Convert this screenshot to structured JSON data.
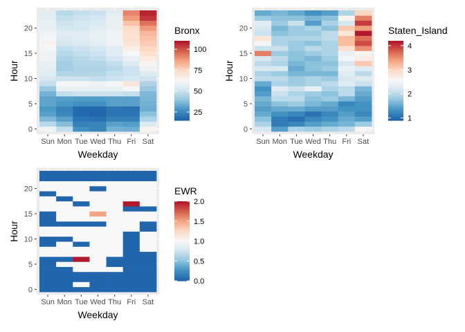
{
  "palette": [
    "#2166AC",
    "#4393C3",
    "#92C5DE",
    "#D1E5F0",
    "#F7F7F7",
    "#FDDBC7",
    "#F4A582",
    "#D6604D",
    "#B2182B"
  ],
  "panel_background": "#EBEBEB",
  "gridline_color": "#FFFFFF",
  "chart_data": [
    {
      "type": "heatmap",
      "xlabel": "Weekday",
      "ylabel": "Hour",
      "x_categories": [
        "Sun",
        "Mon",
        "Tue",
        "Wed",
        "Thu",
        "Fri",
        "Sat"
      ],
      "y_ticks": [
        0,
        5,
        10,
        15,
        20
      ],
      "y_range": [
        0,
        23
      ],
      "legend": {
        "title": "Bronx",
        "position": "right",
        "ticks": [
          25,
          50,
          75,
          100
        ],
        "range": [
          15,
          110
        ]
      },
      "values": [
        [
          60,
          48,
          26,
          23,
          34,
          33,
          64
        ],
        [
          46,
          37,
          22,
          23,
          30,
          29,
          54
        ],
        [
          36,
          30,
          19,
          18,
          22,
          22,
          44
        ],
        [
          30,
          24,
          16,
          15,
          19,
          19,
          38
        ],
        [
          28,
          23,
          16,
          16,
          19,
          18,
          33
        ],
        [
          31,
          28,
          26,
          26,
          30,
          30,
          34
        ],
        [
          31,
          30,
          29,
          29,
          30,
          30,
          35
        ],
        [
          34,
          48,
          50,
          50,
          50,
          48,
          36
        ],
        [
          40,
          58,
          58,
          58,
          58,
          62,
          40
        ],
        [
          48,
          62,
          62,
          60,
          62,
          70,
          44
        ],
        [
          52,
          50,
          50,
          48,
          50,
          52,
          50
        ],
        [
          55,
          45,
          45,
          45,
          48,
          50,
          55
        ],
        [
          57,
          42,
          44,
          44,
          46,
          50,
          60
        ],
        [
          58,
          42,
          45,
          45,
          48,
          55,
          64
        ],
        [
          60,
          44,
          46,
          48,
          52,
          58,
          68
        ],
        [
          60,
          46,
          48,
          50,
          55,
          62,
          72
        ],
        [
          62,
          48,
          50,
          52,
          56,
          66,
          75
        ],
        [
          64,
          52,
          54,
          56,
          60,
          70,
          78
        ],
        [
          62,
          54,
          55,
          58,
          60,
          72,
          80
        ],
        [
          60,
          55,
          56,
          58,
          60,
          72,
          82
        ],
        [
          58,
          52,
          52,
          56,
          58,
          74,
          88
        ],
        [
          58,
          50,
          52,
          54,
          58,
          80,
          95
        ],
        [
          56,
          48,
          50,
          52,
          58,
          88,
          105
        ],
        [
          56,
          46,
          48,
          50,
          56,
          92,
          108
        ]
      ]
    },
    {
      "type": "heatmap",
      "xlabel": "Weekday",
      "ylabel": "Hour",
      "x_categories": [
        "Sun",
        "Mon",
        "Tue",
        "Wed",
        "Thu",
        "Fri",
        "Sat"
      ],
      "y_ticks": [
        0,
        5,
        10,
        15,
        20
      ],
      "y_range": [
        0,
        23
      ],
      "legend": {
        "title": "Staten_Island",
        "position": "right",
        "ticks": [
          1,
          2,
          3,
          4
        ],
        "range": [
          0.9,
          4.2
        ]
      },
      "values": [
        [
          2.2,
          1.4,
          1.9,
          1.8,
          1.9,
          2.0,
          2.6
        ],
        [
          1.9,
          1.1,
          1.2,
          1.4,
          1.5,
          1.6,
          1.8
        ],
        [
          1.7,
          1.1,
          1.0,
          1.2,
          1.3,
          1.5,
          1.4
        ],
        [
          1.5,
          1.3,
          1.2,
          1.0,
          1.2,
          1.4,
          1.2
        ],
        [
          1.4,
          1.5,
          1.5,
          1.4,
          1.4,
          1.3,
          1.3
        ],
        [
          1.5,
          1.7,
          1.8,
          1.6,
          1.5,
          1.2,
          1.3
        ],
        [
          1.6,
          2.0,
          2.0,
          1.7,
          1.8,
          1.6,
          1.4
        ],
        [
          1.4,
          2.1,
          1.9,
          1.8,
          1.7,
          2.0,
          1.5
        ],
        [
          1.3,
          2.3,
          2.1,
          2.4,
          1.9,
          2.0,
          1.6
        ],
        [
          1.5,
          1.9,
          1.8,
          1.9,
          2.0,
          2.3,
          2.1
        ],
        [
          2.0,
          2.0,
          1.8,
          1.9,
          1.8,
          2.2,
          2.3
        ],
        [
          1.9,
          1.8,
          1.6,
          1.6,
          1.6,
          2.3,
          2.0
        ],
        [
          2.2,
          2.2,
          1.5,
          1.7,
          1.8,
          2.4,
          2.3
        ],
        [
          2.0,
          1.9,
          1.6,
          1.7,
          1.7,
          2.2,
          3.1
        ],
        [
          2.2,
          2.0,
          1.7,
          1.6,
          1.8,
          2.5,
          2.7
        ],
        [
          3.6,
          1.8,
          1.7,
          1.8,
          1.9,
          2.4,
          2.6
        ],
        [
          2.1,
          2.1,
          1.8,
          2.0,
          1.9,
          2.9,
          3.5
        ],
        [
          2.5,
          1.9,
          1.8,
          1.7,
          1.9,
          3.2,
          3.9
        ],
        [
          2.8,
          1.9,
          1.9,
          1.9,
          2.0,
          3.2,
          3.7
        ],
        [
          2.1,
          1.7,
          1.8,
          1.8,
          2.0,
          2.8,
          4.2
        ],
        [
          2.2,
          1.6,
          1.8,
          1.9,
          1.7,
          3.1,
          3.4
        ],
        [
          2.3,
          1.8,
          2.1,
          1.4,
          1.9,
          2.2,
          4.0
        ],
        [
          1.8,
          1.7,
          1.7,
          1.6,
          1.7,
          2.6,
          3.6
        ],
        [
          1.5,
          1.6,
          1.5,
          1.3,
          1.4,
          1.9,
          3.0
        ]
      ]
    },
    {
      "type": "heatmap",
      "xlabel": "Weekday",
      "ylabel": "Hour",
      "x_categories": [
        "Sun",
        "Mon",
        "Tue",
        "Wed",
        "Thu",
        "Fri",
        "Sat"
      ],
      "y_ticks": [
        0,
        5,
        10,
        15,
        20
      ],
      "y_range": [
        0,
        23
      ],
      "legend": {
        "title": "EWR",
        "position": "right",
        "ticks": [
          "0.0",
          "0.5",
          "1.0",
          "1.5",
          "2.0"
        ],
        "range": [
          0,
          2
        ]
      },
      "values": [
        [
          0,
          0,
          0,
          0,
          0,
          0,
          0
        ],
        [
          0,
          0,
          1,
          0,
          0,
          0,
          0
        ],
        [
          0,
          0,
          0,
          0,
          0,
          0,
          0
        ],
        [
          0,
          0,
          0,
          0,
          0,
          0,
          0
        ],
        [
          0,
          0,
          1,
          1,
          1,
          0,
          0
        ],
        [
          0,
          1,
          1,
          1,
          0,
          0,
          0
        ],
        [
          0,
          0,
          2,
          1,
          0,
          0,
          0
        ],
        [
          1,
          1,
          1,
          1,
          1,
          0,
          0
        ],
        [
          1,
          1,
          1,
          1,
          1,
          0,
          1
        ],
        [
          0,
          1,
          0,
          1,
          1,
          0,
          1
        ],
        [
          0,
          0,
          1,
          1,
          1,
          0,
          1
        ],
        [
          1,
          1,
          1,
          1,
          1,
          0,
          1
        ],
        [
          1,
          1,
          1,
          1,
          1,
          1,
          0
        ],
        [
          0,
          0,
          0,
          0,
          1,
          1,
          0
        ],
        [
          0,
          1,
          1,
          1,
          1,
          1,
          1
        ],
        [
          0,
          1,
          1,
          1.5,
          1,
          1,
          1
        ],
        [
          1,
          1,
          1,
          1,
          1,
          0,
          0
        ],
        [
          1,
          1,
          0,
          1,
          1,
          2,
          1
        ],
        [
          1,
          0,
          1,
          1,
          1,
          1,
          1
        ],
        [
          0,
          1,
          1,
          1,
          1,
          1,
          1
        ],
        [
          1,
          1,
          1,
          0,
          1,
          1,
          1
        ],
        [
          1,
          1,
          1,
          1,
          1,
          1,
          1
        ],
        [
          0,
          0,
          0,
          0,
          0,
          0,
          0
        ],
        [
          0,
          0,
          0,
          0,
          0,
          0,
          0
        ]
      ]
    }
  ]
}
